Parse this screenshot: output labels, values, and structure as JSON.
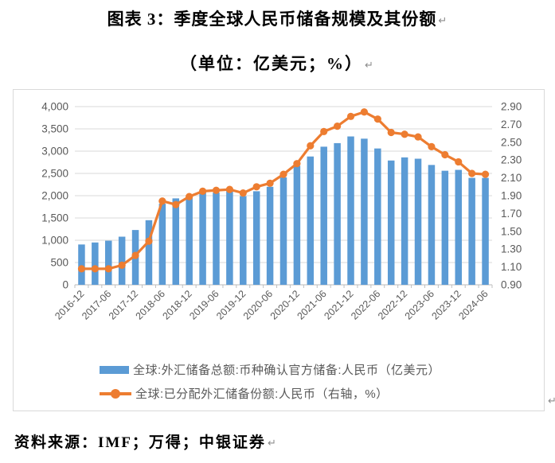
{
  "page": {
    "title": "图表 3：季度全球人民币储备规模及其份额",
    "subtitle": "（单位：亿美元；%）",
    "source": "资料来源：IMF；万得；中银证券",
    "paragraph_mark": "↵"
  },
  "chart_data": {
    "type": "bar",
    "subtype": "bar-line-combo",
    "title": "季度全球人民币储备规模及其份额",
    "units": "亿美元；%",
    "categories": [
      "2016-12",
      "2017-03",
      "2017-06",
      "2017-09",
      "2017-12",
      "2018-03",
      "2018-06",
      "2018-09",
      "2018-12",
      "2019-03",
      "2019-06",
      "2019-09",
      "2019-12",
      "2020-03",
      "2020-06",
      "2020-09",
      "2020-12",
      "2021-03",
      "2021-06",
      "2021-09",
      "2021-12",
      "2022-03",
      "2022-06",
      "2022-09",
      "2022-12",
      "2023-03",
      "2023-06",
      "2023-09",
      "2023-12",
      "2024-03",
      "2024-06"
    ],
    "x_axis_labels": [
      "2016-12",
      "2017-06",
      "2017-12",
      "2018-06",
      "2018-12",
      "2019-06",
      "2019-12",
      "2020-06",
      "2020-12",
      "2021-06",
      "2021-12",
      "2022-06",
      "2022-12",
      "2023-06",
      "2023-12",
      "2024-06"
    ],
    "series": [
      {
        "name": "全球:外汇储备总额:币种确认官方储备:人民币（亿美元）",
        "type": "bar",
        "axis": "left",
        "color": "#5B9BD5",
        "values": [
          905,
          950,
          990,
          1080,
          1230,
          1450,
          1820,
          1940,
          2000,
          2090,
          2070,
          2100,
          1990,
          2100,
          2200,
          2410,
          2670,
          2880,
          3100,
          3180,
          3330,
          3280,
          3060,
          2790,
          2860,
          2830,
          2690,
          2560,
          2580,
          2400,
          2400
        ]
      },
      {
        "name": "全球:已分配外汇储备份额:人民币（右轴，%）",
        "type": "line",
        "axis": "right",
        "color": "#ED7D31",
        "values": [
          1.08,
          1.08,
          1.08,
          1.12,
          1.23,
          1.39,
          1.84,
          1.8,
          1.89,
          1.95,
          1.96,
          1.97,
          1.93,
          2.0,
          2.04,
          2.14,
          2.26,
          2.46,
          2.62,
          2.68,
          2.79,
          2.84,
          2.76,
          2.61,
          2.59,
          2.56,
          2.45,
          2.36,
          2.28,
          2.15,
          2.14
        ]
      }
    ],
    "left_axis": {
      "min": 0,
      "max": 4000,
      "step": 500,
      "tick_labels": [
        "0",
        "500",
        "1,000",
        "1,500",
        "2,000",
        "2,500",
        "3,000",
        "3,500",
        "4,000"
      ]
    },
    "right_axis": {
      "min": 0.9,
      "max": 2.9,
      "step": 0.2,
      "tick_labels": [
        "0.90",
        "1.10",
        "1.30",
        "1.50",
        "1.70",
        "1.90",
        "2.10",
        "2.30",
        "2.50",
        "2.70",
        "2.90"
      ]
    },
    "grid": true,
    "legend_position": "bottom",
    "colors": {
      "bar": "#5B9BD5",
      "line": "#ED7D31",
      "gridline": "#D9D9D9",
      "axis_line": "#C8C8C8",
      "tick": "#BFBFBF",
      "axis_text": "#595959",
      "frame_border": "#D9D9D9"
    }
  }
}
